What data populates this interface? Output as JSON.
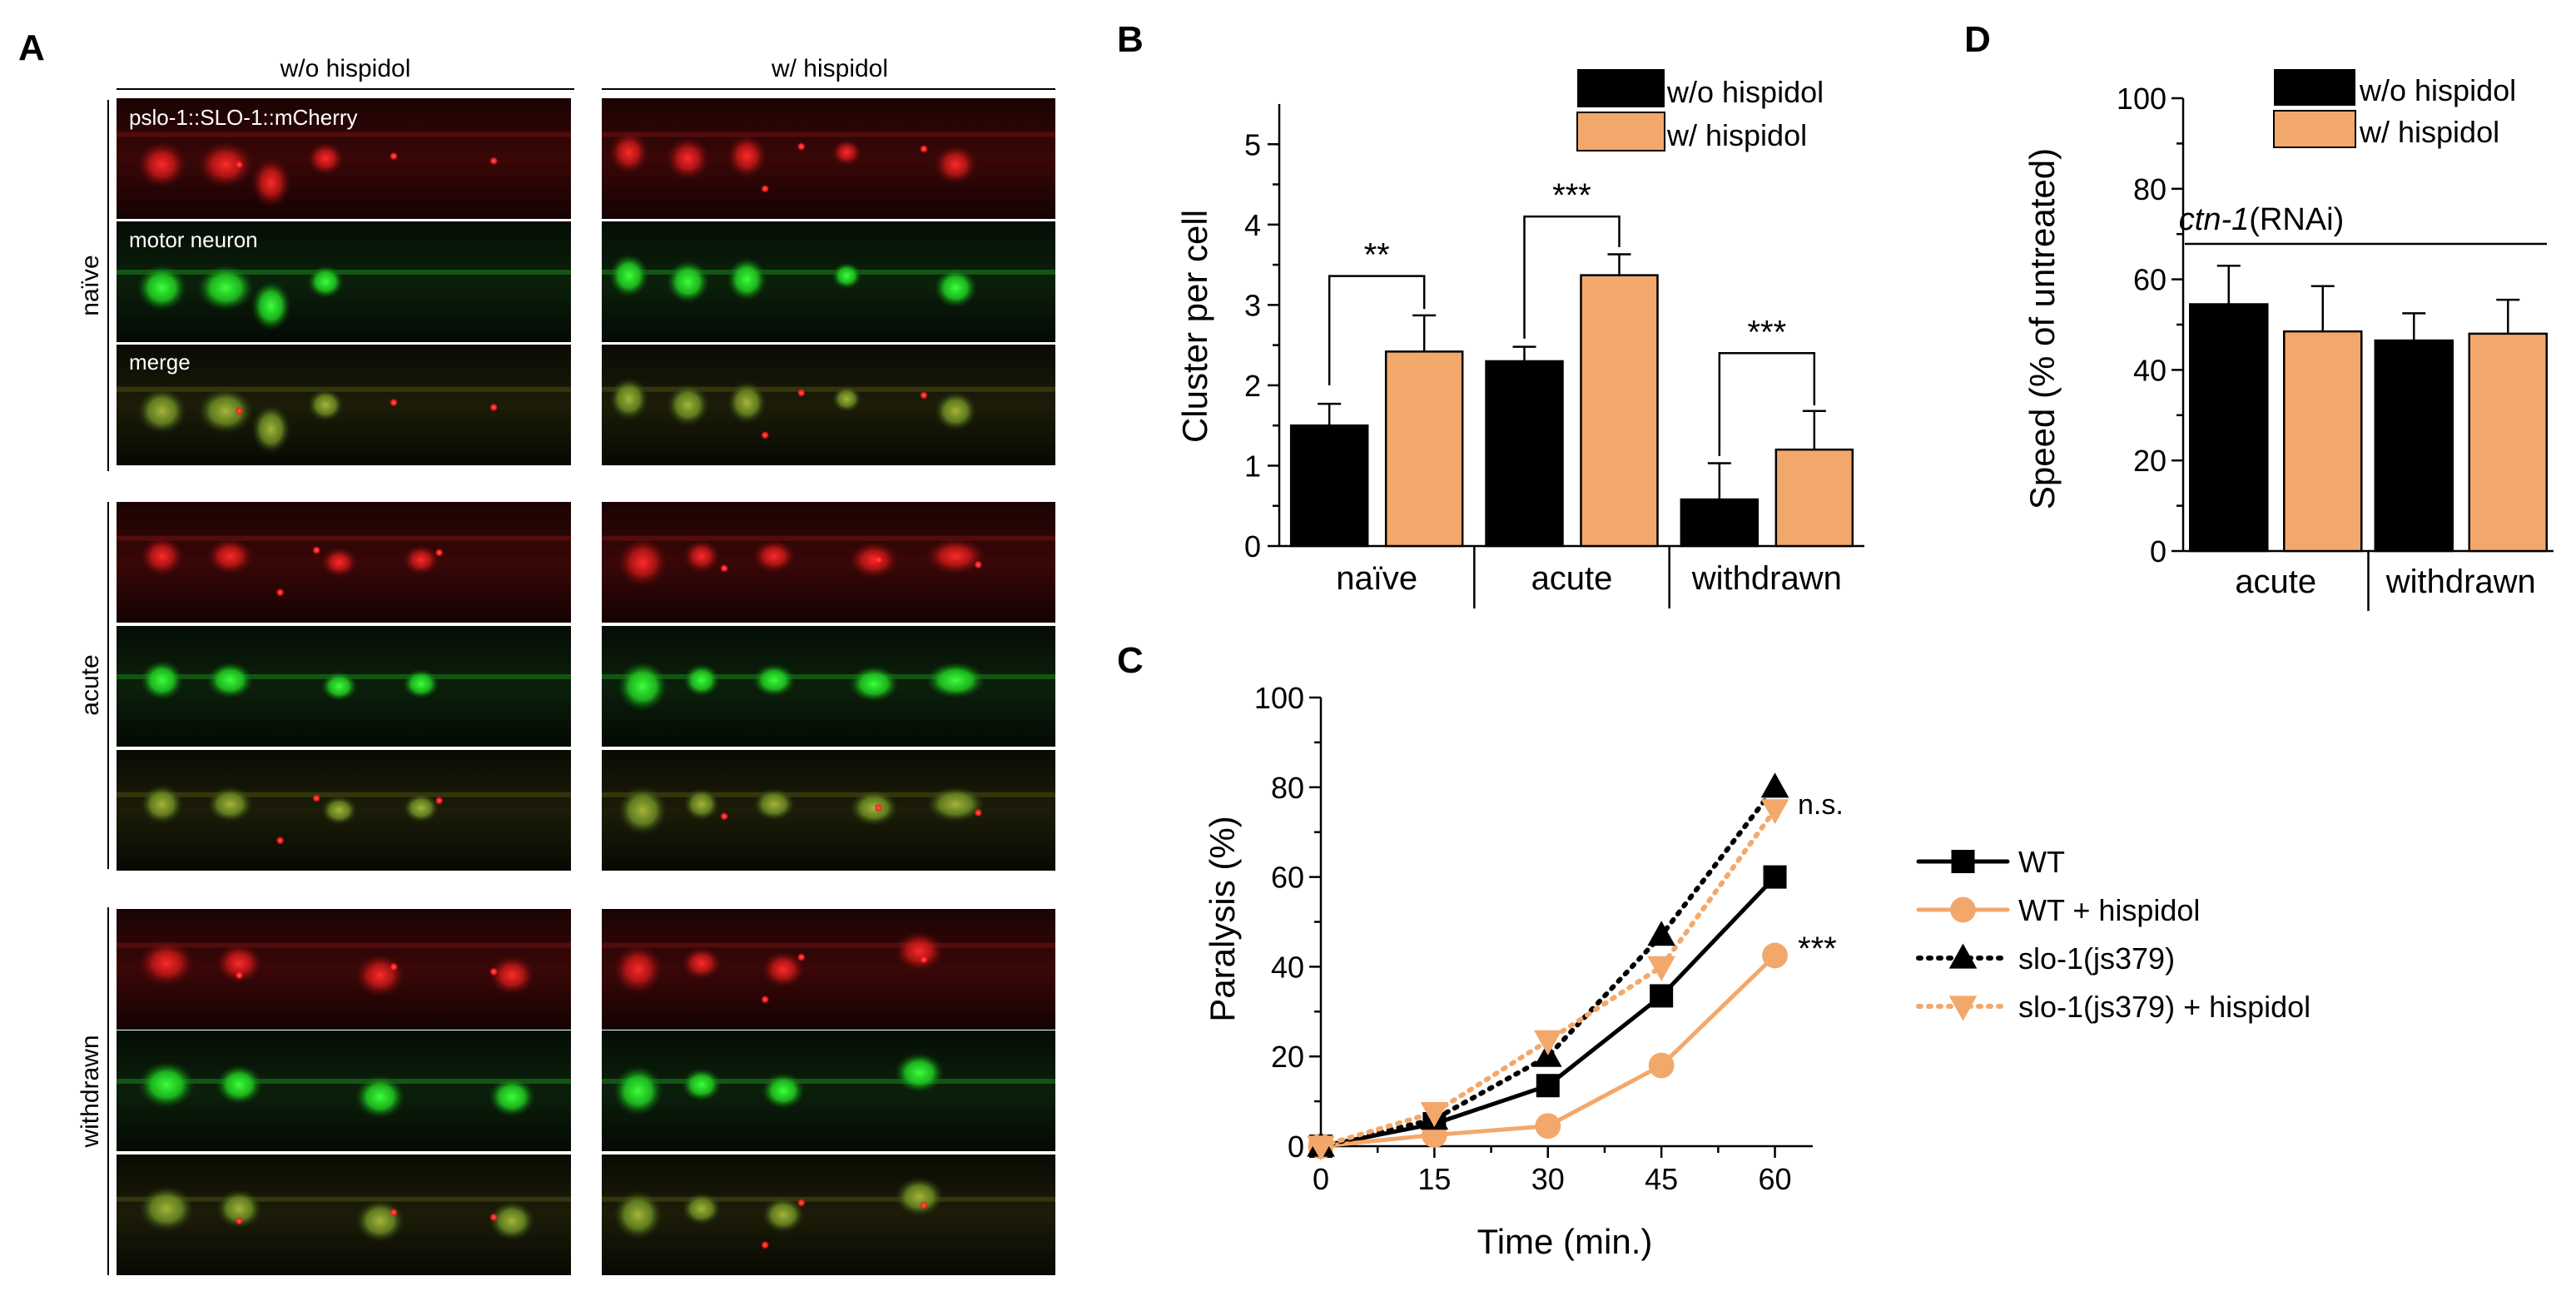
{
  "colors": {
    "black": "#000000",
    "orange": "#f3a86b",
    "red": "#e0242a",
    "green": "#27d32a"
  },
  "panels": {
    "A": {
      "letter": "A",
      "col_headers": [
        "w/o hispidol",
        "w/ hispidol"
      ],
      "row_groups": [
        "naïve",
        "acute",
        "withdrawn"
      ],
      "channel_labels": [
        "pslo-1::SLO-1::mCherry",
        "motor neuron",
        "merge"
      ]
    },
    "B": {
      "letter": "B",
      "legend": [
        "w/o hispidol",
        "w/ hispidol"
      ],
      "significance": [
        "**",
        "***",
        "***"
      ]
    },
    "C": {
      "letter": "C",
      "annotations": [
        "n.s.",
        "***"
      ]
    },
    "D": {
      "letter": "D",
      "legend": [
        "w/o hispidol",
        "w/ hispidol"
      ],
      "condition_italic": "ctn-1",
      "condition_rest": "(RNAi)"
    }
  },
  "chart_data": [
    {
      "id": "B",
      "type": "bar",
      "categories": [
        "naïve",
        "acute",
        "withdrawn"
      ],
      "series": [
        {
          "name": "w/o hispidol",
          "values": [
            1.5,
            2.3,
            0.58
          ],
          "errors": [
            0.27,
            0.18,
            0.45
          ]
        },
        {
          "name": "w/ hispidol",
          "values": [
            2.42,
            3.37,
            1.2
          ],
          "errors": [
            0.45,
            0.26,
            0.48
          ]
        }
      ],
      "xlabel": "",
      "ylabel": "Cluster per cell",
      "ylim": [
        0,
        5.5
      ],
      "yticks": [
        0,
        1,
        2,
        3,
        4,
        5
      ],
      "legend_position": "top-right"
    },
    {
      "id": "C",
      "type": "line",
      "x": [
        0,
        15,
        30,
        45,
        60
      ],
      "series": [
        {
          "name": "WT",
          "values": [
            0,
            5,
            13.5,
            33.5,
            60
          ],
          "color": "#000000",
          "marker": "square",
          "dash": "solid"
        },
        {
          "name": "WT + hispidol",
          "values": [
            0,
            2.5,
            4.5,
            18,
            42.5
          ],
          "color": "#f3a86b",
          "marker": "circle",
          "dash": "solid"
        },
        {
          "name": "slo-1(js379)",
          "values": [
            0,
            6,
            20,
            47,
            80
          ],
          "color": "#000000",
          "marker": "triangle-up",
          "dash": "dotted"
        },
        {
          "name": "slo-1(js379) + hispidol",
          "values": [
            0,
            7.5,
            23.5,
            40,
            75
          ],
          "color": "#f3a86b",
          "marker": "triangle-down",
          "dash": "dotted"
        }
      ],
      "xlabel": "Time (min.)",
      "ylabel": "Paralysis (%)",
      "xlim": [
        0,
        65
      ],
      "ylim": [
        0,
        100
      ],
      "xticks": [
        0,
        15,
        30,
        45,
        60
      ],
      "yticks": [
        0,
        20,
        40,
        60,
        80,
        100
      ],
      "legend_position": "right"
    },
    {
      "id": "D",
      "type": "bar",
      "categories": [
        "acute",
        "withdrawn"
      ],
      "series": [
        {
          "name": "w/o hispidol",
          "values": [
            54.5,
            46.5
          ],
          "errors": [
            8.5,
            6
          ]
        },
        {
          "name": "w/ hispidol",
          "values": [
            48.5,
            48
          ],
          "errors": [
            10,
            7.5
          ]
        }
      ],
      "xlabel": "",
      "ylabel": "Speed (% of untreated)",
      "ylim": [
        0,
        100
      ],
      "yticks": [
        0,
        20,
        40,
        60,
        80,
        100
      ],
      "legend_position": "top-right"
    }
  ]
}
